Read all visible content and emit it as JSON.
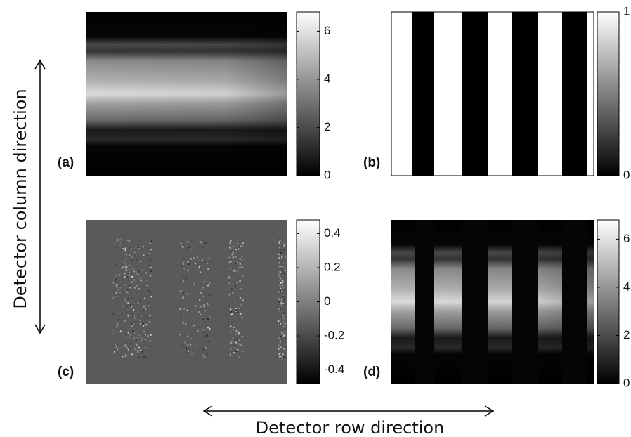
{
  "axis_labels": {
    "y": "Detector column direction",
    "x": "Detector row direction"
  },
  "panels": [
    {
      "label": "(a)",
      "clim": [
        0,
        6.8
      ],
      "ticks": [
        0,
        2,
        4,
        6
      ]
    },
    {
      "label": "(b)",
      "clim": [
        0,
        1
      ],
      "ticks": [
        0,
        1
      ]
    },
    {
      "label": "(c)",
      "clim": [
        -0.48,
        0.48
      ],
      "ticks": [
        -0.4,
        -0.2,
        0,
        0.2,
        0.4
      ]
    },
    {
      "label": "(d)",
      "clim": [
        0,
        6.8
      ],
      "ticks": [
        0,
        2,
        4,
        6
      ]
    }
  ]
}
